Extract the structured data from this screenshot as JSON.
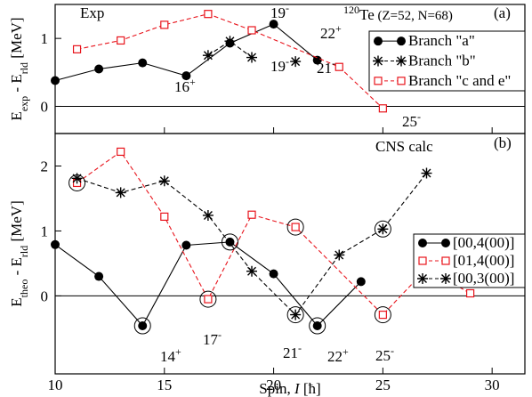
{
  "chart_data": [
    {
      "type": "line",
      "text": "Exp",
      "title": [
        "120",
        "Te",
        " (Z=52, N=68)"
      ],
      "panel": "(a)",
      "ylabel": [
        "E",
        "exp",
        " - E",
        "rld",
        " [MeV]"
      ],
      "xlim": [
        10,
        31.5
      ],
      "xticks": [
        10,
        15,
        20,
        25,
        30
      ],
      "ylim": [
        -0.4,
        1.5
      ],
      "yticks": [
        0,
        1
      ],
      "legend": "upper right",
      "series": [
        {
          "name": "Branch \"a\"",
          "color": "#000000",
          "marker": "circle",
          "line_style": "solid",
          "x": [
            10,
            12,
            14,
            16,
            18,
            20,
            22
          ],
          "values": [
            0.38,
            0.55,
            0.64,
            0.45,
            0.93,
            1.21,
            0.68
          ]
        },
        {
          "name": "Branch \"b\"",
          "color": "#000000",
          "marker": "star",
          "line_style": "dashed",
          "x": [
            17,
            18,
            19,
            20,
            21
          ],
          "values": [
            0.75,
            0.96,
            0.72,
            null,
            0.66
          ]
        },
        {
          "name": "Branch \"c and e\"",
          "color": "#e8141c",
          "marker": "square",
          "line_style": "dashed",
          "x": [
            11,
            13,
            15,
            17,
            19,
            23,
            25
          ],
          "values": [
            0.84,
            0.97,
            1.2,
            1.36,
            1.12,
            0.58,
            -0.03
          ]
        }
      ],
      "annotations": [
        {
          "label": "16",
          "sup": "+"
        },
        {
          "label": "19",
          "sup": "-"
        },
        {
          "label": "19",
          "sup": "-"
        },
        {
          "label": "21",
          "sup": "-"
        },
        {
          "label": "22",
          "sup": "+"
        },
        {
          "label": "25",
          "sup": "-"
        }
      ]
    },
    {
      "type": "line",
      "text": "CNS calc",
      "panel": "(b)",
      "ylabel": [
        "E",
        "theo",
        " - E",
        "rld",
        " [MeV]"
      ],
      "xlabel": [
        "Spin, ",
        "I",
        " [ħ]"
      ],
      "xlim": [
        10,
        31.5
      ],
      "xticks": [
        10,
        15,
        20,
        25,
        30
      ],
      "ylim": [
        -1.2,
        2.5
      ],
      "yticks": [
        0,
        1,
        2
      ],
      "legend": "right",
      "series": [
        {
          "name": "[00,4(00)]",
          "color": "#000000",
          "marker": "circle",
          "line_style": "solid",
          "x": [
            10,
            12,
            14,
            16,
            18,
            20,
            22,
            24
          ],
          "values": [
            0.79,
            0.3,
            -0.46,
            0.78,
            0.83,
            0.34,
            -0.46,
            0.22
          ]
        },
        {
          "name": "[01,4(00)]",
          "color": "#e8141c",
          "marker": "square",
          "line_style": "dashed",
          "x": [
            11,
            13,
            15,
            17,
            19,
            21,
            25,
            27,
            29
          ],
          "values": [
            1.74,
            2.22,
            1.22,
            -0.05,
            1.25,
            1.06,
            -0.29,
            0.42,
            0.04
          ]
        },
        {
          "name": "[00,3(00)]",
          "color": "#000000",
          "marker": "star",
          "line_style": "dashed",
          "x": [
            11,
            13,
            15,
            17,
            19,
            21,
            23,
            25,
            27
          ],
          "values": [
            1.81,
            1.59,
            1.77,
            1.24,
            0.38,
            -0.29,
            0.63,
            1.03,
            1.89
          ]
        }
      ],
      "highlights": {
        "x": [
          11,
          14,
          17,
          18,
          21,
          21,
          22,
          25,
          25
        ],
        "values": [
          1.74,
          -0.46,
          -0.05,
          0.83,
          1.06,
          -0.29,
          -0.46,
          1.03,
          -0.29
        ]
      },
      "annotations": [
        {
          "label": "14",
          "sup": "+"
        },
        {
          "label": "17",
          "sup": "-"
        },
        {
          "label": "21",
          "sup": "-"
        },
        {
          "label": "22",
          "sup": "+"
        },
        {
          "label": "25",
          "sup": "-"
        }
      ]
    }
  ]
}
